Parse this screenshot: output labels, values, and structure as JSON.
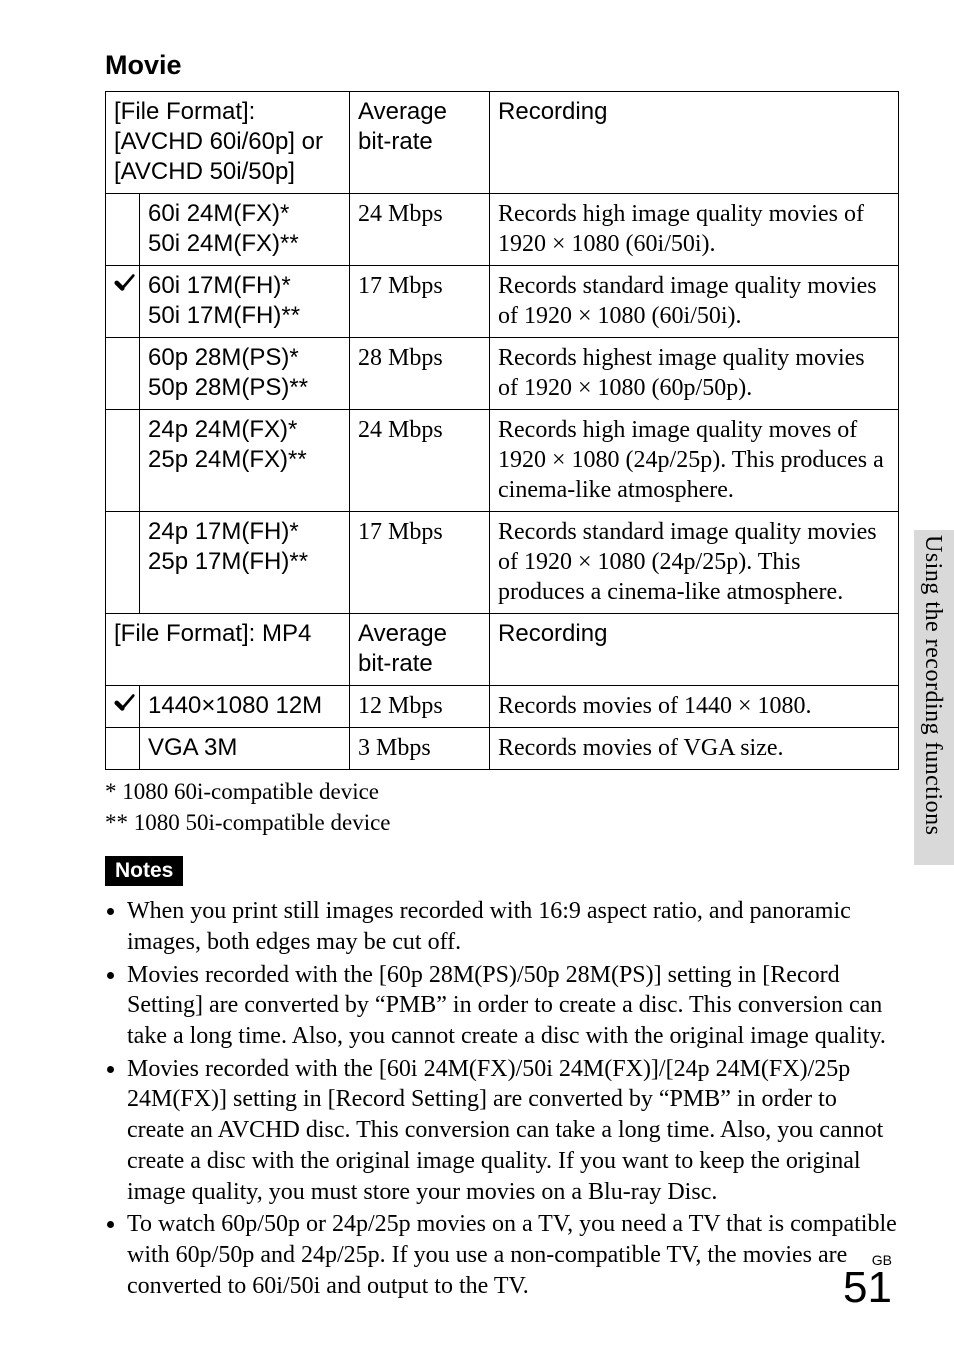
{
  "section_title": "Movie",
  "header_avchd": {
    "format": "[File Format]: [AVCHD 60i/60p] or [AVCHD 50i/50p]",
    "rate": "Average bit-rate",
    "rec": "Recording"
  },
  "rows_avchd": [
    {
      "check": false,
      "name": "60i 24M(FX)*\n50i 24M(FX)**",
      "rate": "24 Mbps",
      "rec": "Records high image quality movies of 1920 × 1080 (60i/50i)."
    },
    {
      "check": true,
      "name": "60i 17M(FH)*\n50i 17M(FH)**",
      "rate": "17 Mbps",
      "rec": "Records standard image quality movies of 1920 × 1080 (60i/50i)."
    },
    {
      "check": false,
      "name": "60p 28M(PS)*\n50p 28M(PS)**",
      "rate": "28 Mbps",
      "rec": "Records highest image quality movies of 1920 × 1080 (60p/50p)."
    },
    {
      "check": false,
      "name": "24p 24M(FX)*\n25p 24M(FX)**",
      "rate": "24 Mbps",
      "rec": "Records high image quality moves of 1920 × 1080 (24p/25p). This produces a cinema-like atmosphere."
    },
    {
      "check": false,
      "name": "24p 17M(FH)*\n25p 17M(FH)**",
      "rate": "17 Mbps",
      "rec": "Records standard image quality movies of 1920 × 1080 (24p/25p). This produces a cinema-like atmosphere."
    }
  ],
  "header_mp4": {
    "format": "[File Format]: MP4",
    "rate": "Average bit-rate",
    "rec": "Recording"
  },
  "rows_mp4": [
    {
      "check": true,
      "name": "1440×1080 12M",
      "rate": "12 Mbps",
      "rec": "Records movies of 1440 × 1080."
    },
    {
      "check": false,
      "name": "VGA 3M",
      "rate": "3 Mbps",
      "rec": "Records movies of VGA size."
    }
  ],
  "footnote1": "*   1080 60i-compatible device",
  "footnote2": "** 1080 50i-compatible device",
  "notes_label": "Notes",
  "notes": [
    "When you print still images recorded with 16:9 aspect ratio, and panoramic images, both edges may be cut off.",
    "Movies recorded with the [60p 28M(PS)/50p 28M(PS)] setting in [Record Setting] are converted by “PMB” in order to create a disc. This conversion can take a long time. Also, you cannot create a disc with the original image quality.",
    "Movies recorded with the [60i 24M(FX)/50i 24M(FX)]/[24p 24M(FX)/25p 24M(FX)] setting in [Record Setting] are converted by “PMB” in order to create an AVCHD disc. This conversion can take a long time. Also, you cannot create a disc with the original image quality. If you want to keep the original image quality, you must store your movies on a Blu-ray Disc.",
    "To watch 60p/50p or 24p/25p movies on a TV, you need a TV that is compatible with 60p/50p and 24p/25p. If you use a non-compatible TV, the movies are converted to 60i/50i and output to the TV."
  ],
  "side_text": "Using the recording functions",
  "page_label": "GB",
  "page_number": "51"
}
